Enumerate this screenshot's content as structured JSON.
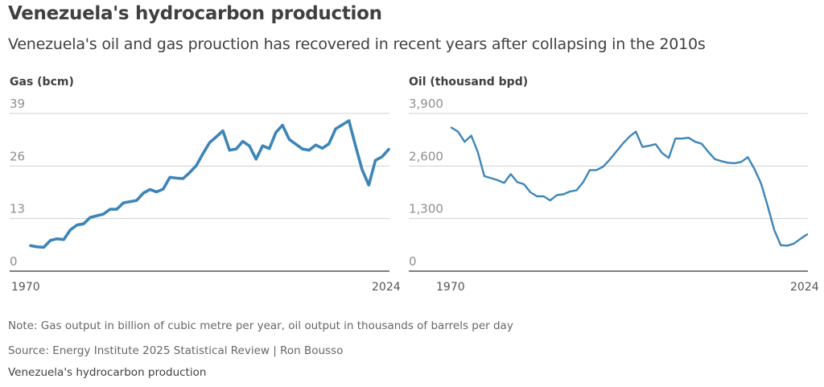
{
  "header": {
    "title": "Venezuela's hydrocarbon production",
    "subtitle": "Venezuela's oil and gas prouction has recovered in recent years after collapsing in the 2010s"
  },
  "footer": {
    "note": "Note: Gas output in billion of cubic metre per year, oil output in thousands of barrels per day",
    "source": "Source: Energy Institute 2025 Statistical Review | Ron Bousso",
    "caption": "Venezuela's hydrocarbon production"
  },
  "colors": {
    "series": "#3d85b8",
    "grid": "#d0d0d0",
    "axis": "#333333"
  },
  "chart_data": [
    {
      "type": "line",
      "title": "Gas (bcm)",
      "xlabel": "",
      "ylabel": "",
      "xlim": [
        1970,
        2024
      ],
      "ylim": [
        0,
        39
      ],
      "yticks": [
        0,
        13,
        26,
        39
      ],
      "ytick_labels": [
        "0",
        "13",
        "26",
        "39"
      ],
      "xtick_labels": [
        "1970",
        "2024"
      ],
      "grid": true,
      "series": [
        {
          "name": "Gas (bcm)",
          "x": [
            1970,
            1971,
            1972,
            1973,
            1974,
            1975,
            1976,
            1977,
            1978,
            1979,
            1980,
            1981,
            1982,
            1983,
            1984,
            1985,
            1986,
            1987,
            1988,
            1989,
            1990,
            1991,
            1992,
            1993,
            1994,
            1995,
            1996,
            1997,
            1998,
            1999,
            2000,
            2001,
            2002,
            2003,
            2004,
            2005,
            2006,
            2007,
            2008,
            2009,
            2010,
            2011,
            2012,
            2013,
            2014,
            2015,
            2016,
            2017,
            2018,
            2019,
            2020,
            2021,
            2022,
            2023,
            2024
          ],
          "values": [
            6.3,
            6.0,
            5.9,
            7.6,
            8.0,
            7.8,
            10.2,
            11.4,
            11.7,
            13.3,
            13.7,
            14.1,
            15.3,
            15.3,
            16.9,
            17.2,
            17.5,
            19.3,
            20.2,
            19.6,
            20.3,
            23.2,
            23.0,
            22.9,
            24.4,
            26.1,
            29.1,
            31.8,
            33.2,
            34.7,
            29.9,
            30.2,
            32.1,
            31.0,
            27.7,
            31.0,
            30.3,
            34.3,
            36.1,
            32.6,
            31.4,
            30.2,
            29.9,
            31.2,
            30.4,
            31.5,
            35.2,
            36.2,
            37.2,
            31.0,
            25.1,
            21.3,
            27.4,
            28.3,
            30.1
          ]
        }
      ]
    },
    {
      "type": "line",
      "title": "Oil (thousand bpd)",
      "xlabel": "",
      "ylabel": "",
      "xlim": [
        1970,
        2024
      ],
      "ylim": [
        0,
        3900
      ],
      "yticks": [
        0,
        1300,
        2600,
        3900
      ],
      "ytick_labels": [
        "0",
        "1,300",
        "2,600",
        "3,900"
      ],
      "xtick_labels": [
        "1970",
        "2024"
      ],
      "grid": true,
      "series": [
        {
          "name": "Oil (thousand bpd)",
          "x": [
            1970,
            1971,
            1972,
            1973,
            1974,
            1975,
            1976,
            1977,
            1978,
            1979,
            1980,
            1981,
            1982,
            1983,
            1984,
            1985,
            1986,
            1987,
            1988,
            1989,
            1990,
            1991,
            1992,
            1993,
            1994,
            1995,
            1996,
            1997,
            1998,
            1999,
            2000,
            2001,
            2002,
            2003,
            2004,
            2005,
            2006,
            2007,
            2008,
            2009,
            2010,
            2011,
            2012,
            2013,
            2014,
            2015,
            2016,
            2017,
            2018,
            2019,
            2020,
            2021,
            2022,
            2023,
            2024
          ],
          "values": [
            3550,
            3450,
            3200,
            3350,
            2950,
            2350,
            2300,
            2250,
            2180,
            2400,
            2200,
            2150,
            1950,
            1850,
            1850,
            1750,
            1880,
            1900,
            1970,
            2000,
            2200,
            2500,
            2500,
            2580,
            2750,
            2950,
            3150,
            3320,
            3450,
            3070,
            3100,
            3140,
            2920,
            2800,
            3280,
            3280,
            3300,
            3200,
            3150,
            2950,
            2770,
            2720,
            2680,
            2670,
            2700,
            2820,
            2530,
            2170,
            1620,
            1020,
            640,
            630,
            680,
            800,
            910
          ]
        }
      ]
    }
  ]
}
